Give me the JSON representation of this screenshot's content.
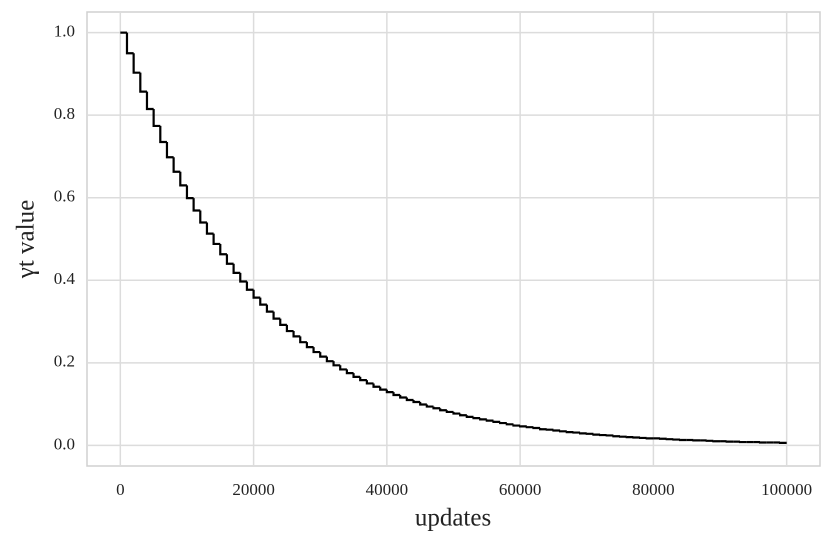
{
  "chart_data": {
    "type": "step",
    "xlabel": "updates",
    "ylabel": "γt value",
    "x": [
      0,
      1000,
      2000,
      3000,
      4000,
      5000,
      6000,
      7000,
      8000,
      9000,
      10000,
      11000,
      12000,
      13000,
      14000,
      15000,
      16000,
      17000,
      18000,
      19000,
      20000,
      21000,
      22000,
      23000,
      24000,
      25000,
      26000,
      27000,
      28000,
      29000,
      30000,
      31000,
      32000,
      33000,
      34000,
      35000,
      36000,
      37000,
      38000,
      39000,
      40000,
      41000,
      42000,
      43000,
      44000,
      45000,
      46000,
      47000,
      48000,
      49000,
      50000,
      51000,
      52000,
      53000,
      54000,
      55000,
      56000,
      57000,
      58000,
      59000,
      60000,
      61000,
      62000,
      63000,
      64000,
      65000,
      66000,
      67000,
      68000,
      69000,
      70000,
      71000,
      72000,
      73000,
      74000,
      75000,
      76000,
      77000,
      78000,
      79000,
      80000,
      81000,
      82000,
      83000,
      84000,
      85000,
      86000,
      87000,
      88000,
      89000,
      90000,
      91000,
      92000,
      93000,
      94000,
      95000,
      96000,
      97000,
      98000,
      99000,
      100000
    ],
    "values": [
      1,
      0.95,
      0.903,
      0.857,
      0.815,
      0.774,
      0.735,
      0.698,
      0.663,
      0.63,
      0.599,
      0.569,
      0.54,
      0.513,
      0.488,
      0.463,
      0.44,
      0.418,
      0.397,
      0.377,
      0.358,
      0.341,
      0.324,
      0.307,
      0.292,
      0.277,
      0.264,
      0.25,
      0.238,
      0.226,
      0.215,
      0.204,
      0.194,
      0.184,
      0.175,
      0.166,
      0.158,
      0.15,
      0.142,
      0.135,
      0.129,
      0.122,
      0.116,
      0.11,
      0.105,
      0.099,
      0.094,
      0.09,
      0.085,
      0.081,
      0.077,
      0.073,
      0.069,
      0.066,
      0.063,
      0.06,
      0.057,
      0.054,
      0.051,
      0.048,
      0.046,
      0.044,
      0.042,
      0.039,
      0.038,
      0.036,
      0.034,
      0.032,
      0.031,
      0.029,
      0.028,
      0.026,
      0.025,
      0.024,
      0.022,
      0.021,
      0.02,
      0.019,
      0.018,
      0.017,
      0.017,
      0.016,
      0.015,
      0.014,
      0.013,
      0.013,
      0.012,
      0.012,
      0.011,
      0.01,
      0.01,
      0.009,
      0.009,
      0.008,
      0.008,
      0.008,
      0.007,
      0.007,
      0.007,
      0.006,
      0.006
    ],
    "color": "#000000",
    "xlim": [
      -5000,
      105000
    ],
    "ylim": [
      -0.05,
      1.05
    ],
    "xticks": [
      0,
      20000,
      40000,
      60000,
      80000,
      100000
    ],
    "yticks": [
      {
        "value": 0,
        "label": "0.0"
      },
      0.2,
      0.4,
      0.6,
      0.8,
      {
        "value": 1,
        "label": "1.0"
      }
    ],
    "grid": true
  }
}
